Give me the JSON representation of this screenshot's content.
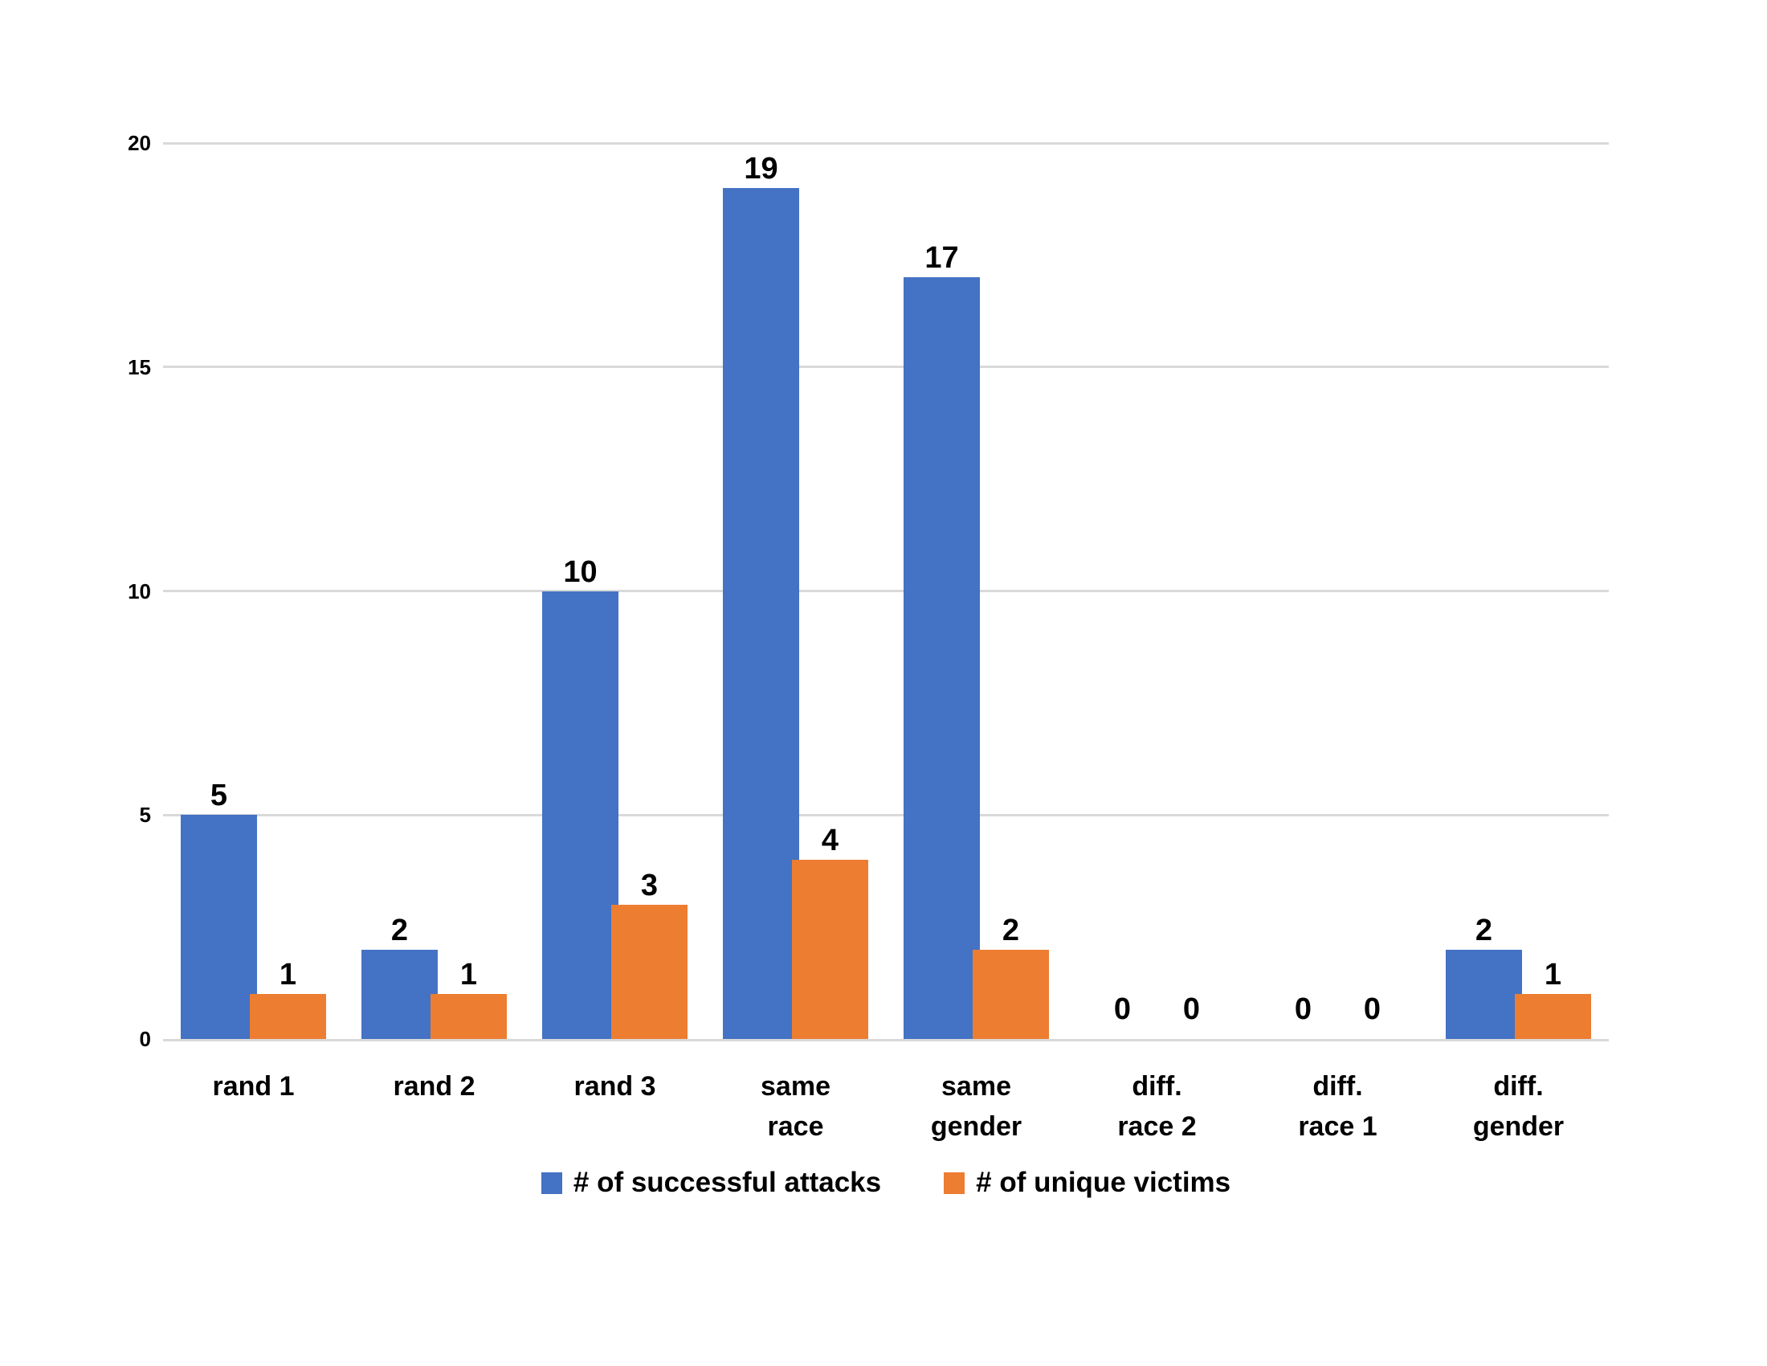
{
  "chart_data": {
    "type": "bar",
    "title": "",
    "xlabel": "",
    "ylabel": "",
    "categories": [
      "rand 1",
      "rand 2",
      "rand 3",
      "same\nrace",
      "same\ngender",
      "diff.\nrace 2",
      "diff.\nrace 1",
      "diff.\ngender"
    ],
    "series": [
      {
        "name": "# of successful attacks",
        "color": "#4472C4",
        "values": [
          5,
          2,
          10,
          19,
          17,
          0,
          0,
          2
        ]
      },
      {
        "name": "# of unique victims",
        "color": "#ED7D31",
        "values": [
          1,
          1,
          3,
          4,
          2,
          0,
          0,
          1
        ]
      }
    ],
    "data_labels": [
      [
        "5",
        "2",
        "10",
        "19",
        "17",
        "0",
        "0",
        "2"
      ],
      [
        "1",
        "1",
        "3",
        "4",
        "2",
        "0",
        "0",
        "1"
      ]
    ],
    "ylim": [
      0,
      20
    ],
    "yticks": [
      "0",
      "5",
      "10",
      "15",
      "20"
    ],
    "grid": true,
    "legend_position": "bottom"
  },
  "colors": {
    "gridline": "#D9D9D9",
    "text": "#000000",
    "background": "#FFFFFF",
    "series_blue": "#4472C4",
    "series_orange": "#ED7D31"
  }
}
